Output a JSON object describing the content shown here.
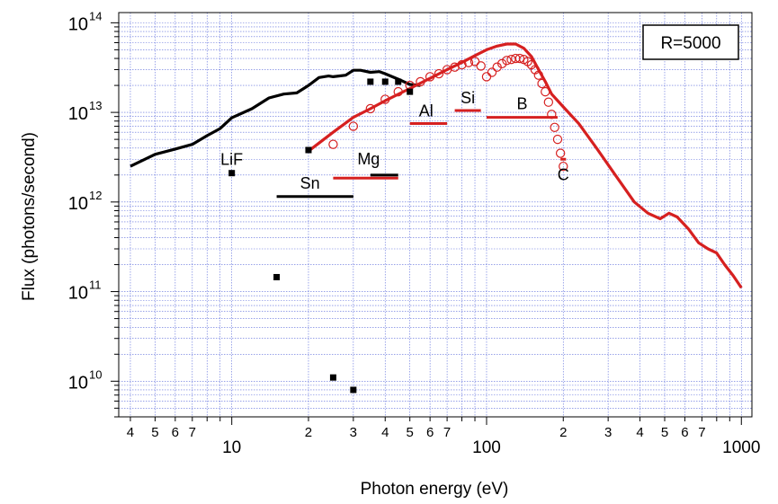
{
  "chart_data": {
    "type": "line",
    "xscale": "log",
    "yscale": "log",
    "xlim": [
      3.6,
      1100
    ],
    "ylim": [
      4000000000.0,
      130000000000000.0
    ],
    "xlabel": "Photon energy (eV)",
    "ylabel": "Flux (photons/second)",
    "xticks_major": [
      10,
      100,
      1000
    ],
    "xtick_labels_major": [
      "10",
      "100",
      "1000"
    ],
    "xticks_minor": [
      4,
      5,
      6,
      7,
      20,
      30,
      40,
      50,
      60,
      70,
      200,
      300,
      400,
      500,
      600,
      700
    ],
    "xtick_labels_minor": [
      "4",
      "5",
      "6",
      "7",
      "2",
      "3",
      "4",
      "5",
      "6",
      "7",
      "2",
      "3",
      "4",
      "5",
      "6",
      "7"
    ],
    "yticks": [
      10000000000.0,
      100000000000.0,
      1000000000000.0,
      10000000000000.0,
      100000000000000.0
    ],
    "ytick_bases": [
      "10",
      "10",
      "10",
      "10",
      "10"
    ],
    "ytick_exponents": [
      "10",
      "11",
      "12",
      "13",
      "14"
    ],
    "grid": true,
    "legend_box": "R=5000",
    "series": [
      {
        "color": "#000000",
        "style": "line",
        "x": [
          4,
          5,
          6,
          7,
          8,
          9,
          10,
          12,
          14,
          16,
          18,
          20,
          22,
          24,
          25,
          28,
          30,
          32,
          35,
          38,
          40,
          45,
          50,
          55
        ],
        "y": [
          2500000000000.0,
          3400000000000.0,
          3900000000000.0,
          4400000000000.0,
          5500000000000.0,
          6600000000000.0,
          8700000000000.0,
          11000000000000.0,
          14500000000000.0,
          16000000000000.0,
          16500000000000.0,
          20000000000000.0,
          24500000000000.0,
          25500000000000.0,
          25000000000000.0,
          26000000000000.0,
          29500000000000.0,
          29500000000000.0,
          28000000000000.0,
          28500000000000.0,
          27000000000000.0,
          23500000000000.0,
          20500000000000.0,
          20000000000000.0
        ]
      },
      {
        "color": "#d62020",
        "style": "line",
        "x": [
          20,
          25,
          30,
          35,
          40,
          50,
          60,
          70,
          80,
          90,
          100,
          110,
          120,
          130,
          140,
          150,
          160,
          170,
          180,
          200,
          230,
          270,
          320,
          380,
          430,
          480,
          520,
          560,
          620,
          680,
          740,
          800,
          860,
          930,
          1000
        ],
        "y": [
          3700000000000.0,
          6000000000000.0,
          8800000000000.0,
          11000000000000.0,
          13500000000000.0,
          18500000000000.0,
          24000000000000.0,
          30000000000000.0,
          36000000000000.0,
          43000000000000.0,
          50000000000000.0,
          55000000000000.0,
          58000000000000.0,
          58000000000000.0,
          52000000000000.0,
          42000000000000.0,
          30000000000000.0,
          22000000000000.0,
          16000000000000.0,
          11500000000000.0,
          7500000000000.0,
          4000000000000.0,
          2000000000000.0,
          1000000000000.0,
          750000000000.0,
          650000000000.0,
          750000000000.0,
          680000000000.0,
          500000000000.0,
          350000000000.0,
          300000000000.0,
          270000000000.0,
          200000000000.0,
          150000000000.0,
          110000000000.0
        ]
      },
      {
        "color": "#d62020",
        "style": "open-circle",
        "x": [
          25,
          30,
          35,
          40,
          45,
          50,
          55,
          60,
          65,
          70,
          75,
          80,
          85,
          90,
          95,
          100,
          105,
          110,
          115,
          120,
          125,
          130,
          135,
          140,
          145,
          150,
          155,
          160,
          165,
          170,
          175,
          180,
          185,
          190,
          195,
          200
        ],
        "y": [
          4400000000000.0,
          7000000000000.0,
          11000000000000.0,
          14000000000000.0,
          17000000000000.0,
          20000000000000.0,
          22000000000000.0,
          25000000000000.0,
          27000000000000.0,
          30000000000000.0,
          32000000000000.0,
          34000000000000.0,
          36000000000000.0,
          37000000000000.0,
          33000000000000.0,
          25000000000000.0,
          28000000000000.0,
          32000000000000.0,
          35000000000000.0,
          38000000000000.0,
          39000000000000.0,
          40000000000000.0,
          40000000000000.0,
          39000000000000.0,
          37000000000000.0,
          34000000000000.0,
          30000000000000.0,
          26000000000000.0,
          21000000000000.0,
          17000000000000.0,
          13000000000000.0,
          9500000000000.0,
          6800000000000.0,
          5000000000000.0,
          3500000000000.0,
          2500000000000.0
        ]
      },
      {
        "color": "#000000",
        "style": "square",
        "x": [
          10,
          15,
          20,
          25,
          30,
          35,
          40,
          45,
          50
        ],
        "y": [
          2100000000000.0,
          145000000000.0,
          3800000000000.0,
          11000000000.0,
          8000000000.0,
          22000000000000.0,
          22000000000000.0,
          22000000000000.0,
          17000000000000.0
        ]
      }
    ],
    "filters": [
      {
        "label": "LiF",
        "color": "#000000",
        "x": [
          10,
          10
        ],
        "y": 2100000000000.0
      },
      {
        "label": "Sn",
        "color": "#000000",
        "x": [
          15,
          30
        ],
        "y": 1150000000000.0
      },
      {
        "label": "Mg",
        "color": "#000000",
        "x": [
          35,
          45
        ],
        "y": 2000000000000.0
      },
      {
        "label": "",
        "color": "#d62020",
        "x": [
          25,
          45
        ],
        "y": 1850000000000.0
      },
      {
        "label": "Al",
        "color": "#d62020",
        "x": [
          50,
          70
        ],
        "y": 7500000000000.0
      },
      {
        "label": "Si",
        "color": "#d62020",
        "x": [
          75,
          95
        ],
        "y": 10500000000000.0
      },
      {
        "label": "B",
        "color": "#d62020",
        "x": [
          100,
          190
        ],
        "y": 8800000000000.0
      },
      {
        "label": "C",
        "color": "#d62020",
        "x": [
          195,
          205
        ],
        "y": 3000000000000.0
      }
    ]
  }
}
